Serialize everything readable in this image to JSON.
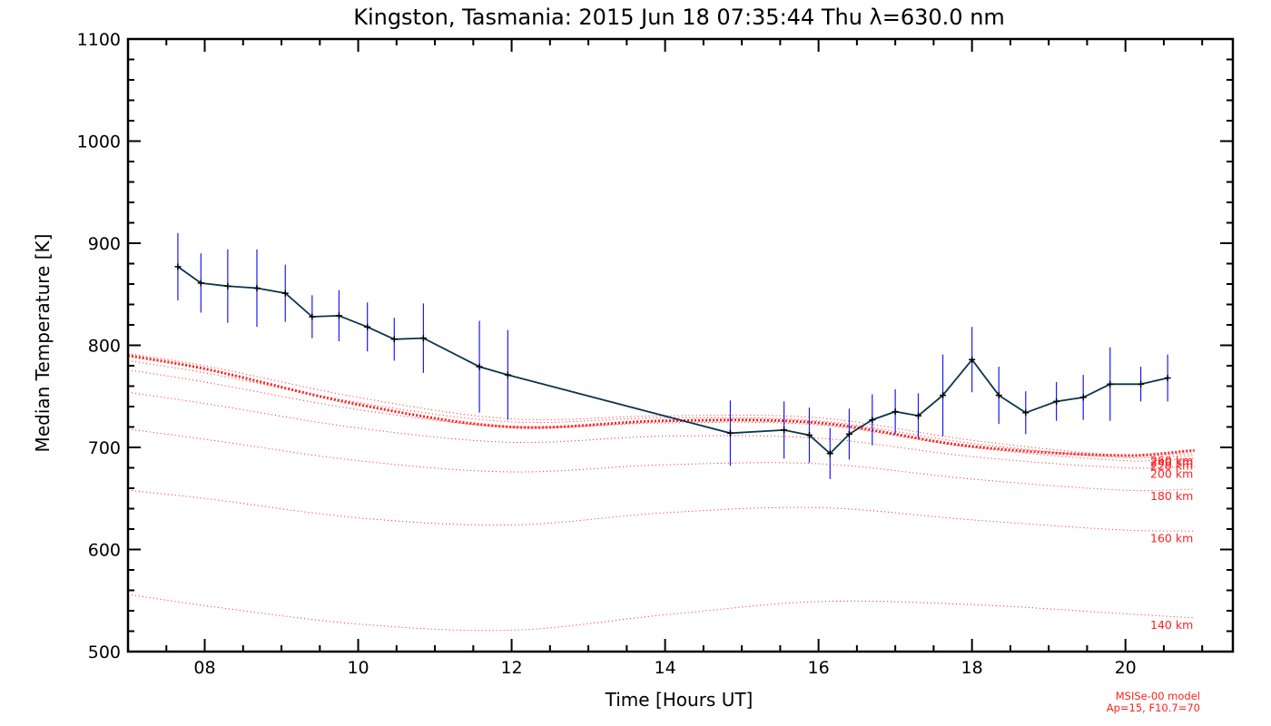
{
  "chart_data": {
    "type": "line",
    "title": "Kingston, Tasmania: 2015 Jun 18 07:35:44 Thu λ=630.0 nm",
    "xlabel": "Time [Hours UT]",
    "ylabel": "Median Temperature [K]",
    "xlim": [
      7,
      21.4
    ],
    "ylim": [
      500,
      1100
    ],
    "x_ticks": [
      8,
      10,
      12,
      14,
      16,
      18,
      20
    ],
    "x_tick_labels": [
      "08",
      "10",
      "12",
      "14",
      "16",
      "18",
      "20"
    ],
    "y_ticks": [
      500,
      600,
      700,
      800,
      900,
      1000,
      1100
    ],
    "y_tick_labels": [
      "500",
      "600",
      "700",
      "800",
      "900",
      "1000",
      "1100"
    ],
    "grid": false,
    "measured": {
      "color": "#0a3550",
      "error_bar_color": "#1a1aff",
      "x": [
        7.65,
        7.95,
        8.3,
        8.68,
        9.05,
        9.4,
        9.75,
        10.12,
        10.47,
        10.85,
        11.58,
        11.95,
        14.85,
        15.55,
        15.88,
        16.15,
        16.4,
        16.7,
        17.0,
        17.3,
        17.62,
        18.0,
        18.35,
        18.7,
        19.1,
        19.45,
        19.8,
        20.2,
        20.55
      ],
      "y": [
        877,
        861,
        858,
        856,
        851,
        828,
        829,
        818,
        806,
        807,
        779,
        771,
        714,
        717,
        712,
        694,
        713,
        727,
        735,
        731,
        751,
        786,
        751,
        734,
        745,
        749,
        762,
        762,
        768
      ],
      "error": [
        33,
        29,
        36,
        38,
        28,
        21,
        25,
        24,
        21,
        34,
        45,
        44,
        32,
        28,
        27,
        25,
        25,
        25,
        22,
        22,
        40,
        32,
        28,
        21,
        19,
        22,
        36,
        17,
        23
      ]
    },
    "model_curves": [
      {
        "label": "140 km",
        "x": [
          7,
          8,
          10,
          12,
          14,
          16,
          18,
          20,
          20.9
        ],
        "y": [
          556,
          545,
          527,
          521,
          536,
          549,
          546,
          537,
          533
        ]
      },
      {
        "label": "160 km",
        "x": [
          7,
          8,
          10,
          12,
          14,
          16,
          18,
          20,
          20.9
        ],
        "y": [
          658,
          650,
          631,
          624,
          636,
          641,
          629,
          619,
          618
        ]
      },
      {
        "label": "180 km",
        "x": [
          7,
          8,
          10,
          12,
          14,
          16,
          18,
          20,
          20.9
        ],
        "y": [
          718,
          708,
          687,
          676,
          683,
          684,
          669,
          658,
          659
        ]
      },
      {
        "label": "200 km",
        "x": [
          7,
          8,
          10,
          12,
          14,
          16,
          18,
          20,
          20.9
        ],
        "y": [
          754,
          743,
          719,
          705,
          711,
          709,
          691,
          680,
          681
        ]
      },
      {
        "label": "220 km",
        "x": [
          7,
          8,
          10,
          12,
          14,
          16,
          18,
          20,
          20.9
        ],
        "y": [
          776,
          764,
          737,
          720,
          724,
          722,
          700,
          687,
          689
        ]
      },
      {
        "label": "240 km",
        "x": [
          7,
          8,
          10,
          12,
          14,
          16,
          18,
          20,
          20.9
        ],
        "y": [
          785,
          773,
          744,
          725,
          729,
          726,
          704,
          690,
          692
        ]
      },
      {
        "label": "260 km",
        "x": [
          7,
          8,
          10,
          12,
          14,
          16,
          18,
          20,
          20.9
        ],
        "y": [
          792,
          780,
          749,
          728,
          731,
          729,
          707,
          692,
          694
        ]
      }
    ],
    "bold_model_curve": {
      "x": [
        7,
        8,
        10,
        12,
        14,
        16,
        18,
        20,
        20.9
      ],
      "y": [
        790,
        777,
        742,
        720,
        726,
        724,
        701,
        692,
        697
      ]
    },
    "model_color": "#ff2020",
    "model_note": [
      "MSISe-00 model",
      "Ap=15, F10.7=70"
    ]
  }
}
